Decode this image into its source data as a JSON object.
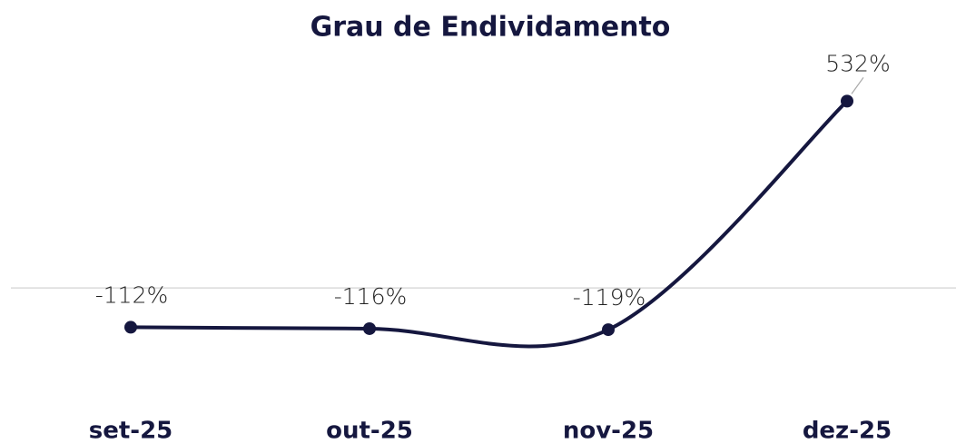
{
  "chart_data": {
    "type": "line",
    "title": "Grau de Endividamento",
    "categories": [
      "set-25",
      "out-25",
      "nov-25",
      "dez-25"
    ],
    "series": [
      {
        "name": "Grau de Endividamento",
        "color": "#15173f",
        "values": [
          -112,
          -116,
          -119,
          532
        ],
        "value_labels": [
          "-112%",
          "-116%",
          "-119%",
          "532%"
        ]
      }
    ],
    "ylim": [
      -300,
      700
    ]
  }
}
